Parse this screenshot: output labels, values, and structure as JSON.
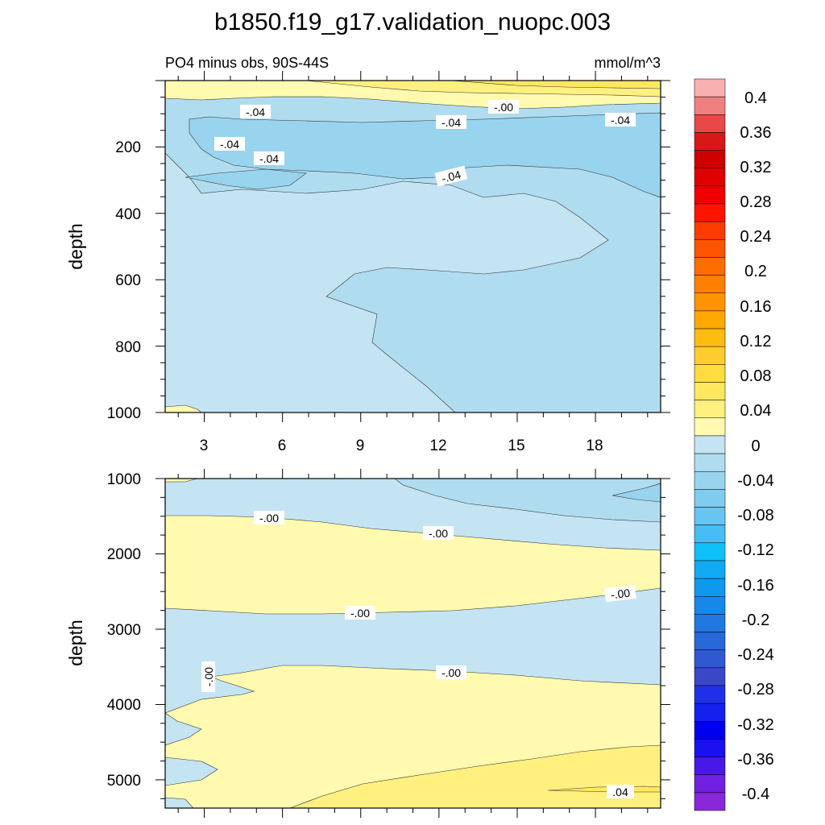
{
  "chart_data": {
    "type": "heatmap",
    "title": "b1850.f19_g17.validation_nuopc.003",
    "subtitle_left": "PO4 minus obs, 90S-44S",
    "subtitle_right": "mmol/m^3",
    "panels": [
      {
        "name": "upper",
        "ylabel": "depth",
        "ylim": [
          0,
          1000
        ],
        "yticks": [
          "200",
          "400",
          "600",
          "800",
          "1000"
        ],
        "xlim": [
          1.5,
          20.5
        ],
        "xticks": [
          "3",
          "6",
          "9",
          "12",
          "15",
          "18"
        ],
        "contour_labels": [
          "-.04",
          "-.04",
          "-.04",
          "-.04",
          "-.04",
          "-.00",
          "-.04"
        ]
      },
      {
        "name": "lower",
        "ylabel": "depth",
        "ylim": [
          1000,
          5375
        ],
        "yticks": [
          "1000",
          "2000",
          "3000",
          "4000",
          "5000"
        ],
        "xlim": [
          1.5,
          20.5
        ],
        "contour_labels": [
          "-.00",
          "-.00",
          "-.00",
          "-.00",
          "-.00",
          "-.00",
          ".04"
        ]
      }
    ],
    "colorbar": {
      "labels": [
        "0.4",
        "0.36",
        "0.32",
        "0.28",
        "0.24",
        "0.2",
        "0.16",
        "0.12",
        "0.08",
        "0.04",
        "0",
        "-0.04",
        "-0.08",
        "-0.12",
        "-0.16",
        "-0.2",
        "-0.24",
        "-0.28",
        "-0.32",
        "-0.36",
        "-0.4"
      ],
      "colors": [
        "#f8b0b0",
        "#f08080",
        "#e84848",
        "#d81818",
        "#d00000",
        "#e00000",
        "#f00000",
        "#ff1400",
        "#ff3c00",
        "#ff5400",
        "#ff6c00",
        "#ff8000",
        "#ff9400",
        "#ffa800",
        "#ffbc10",
        "#ffcc30",
        "#ffdc40",
        "#ffe860",
        "#fff080",
        "#fffab0",
        "#c4e4f4",
        "#b0dcf0",
        "#98d4ee",
        "#80ccee",
        "#68c4f0",
        "#48bcf4",
        "#10c0f8",
        "#10aaf4",
        "#1098ee",
        "#1888e8",
        "#2078e0",
        "#2868d8",
        "#3058d0",
        "#3848c8",
        "#2030e8",
        "#1420f0",
        "#0000f0",
        "#1a10f0",
        "#4818e8",
        "#7020e0",
        "#8828d8"
      ]
    },
    "fill_colors": {
      "pale_yellow": "#fffab0",
      "yellow": "#fff080",
      "gold": "#ffe860",
      "light_blue": "#c4e4f4",
      "mid_blue": "#b0dcf0",
      "blue": "#98d4ee"
    }
  }
}
